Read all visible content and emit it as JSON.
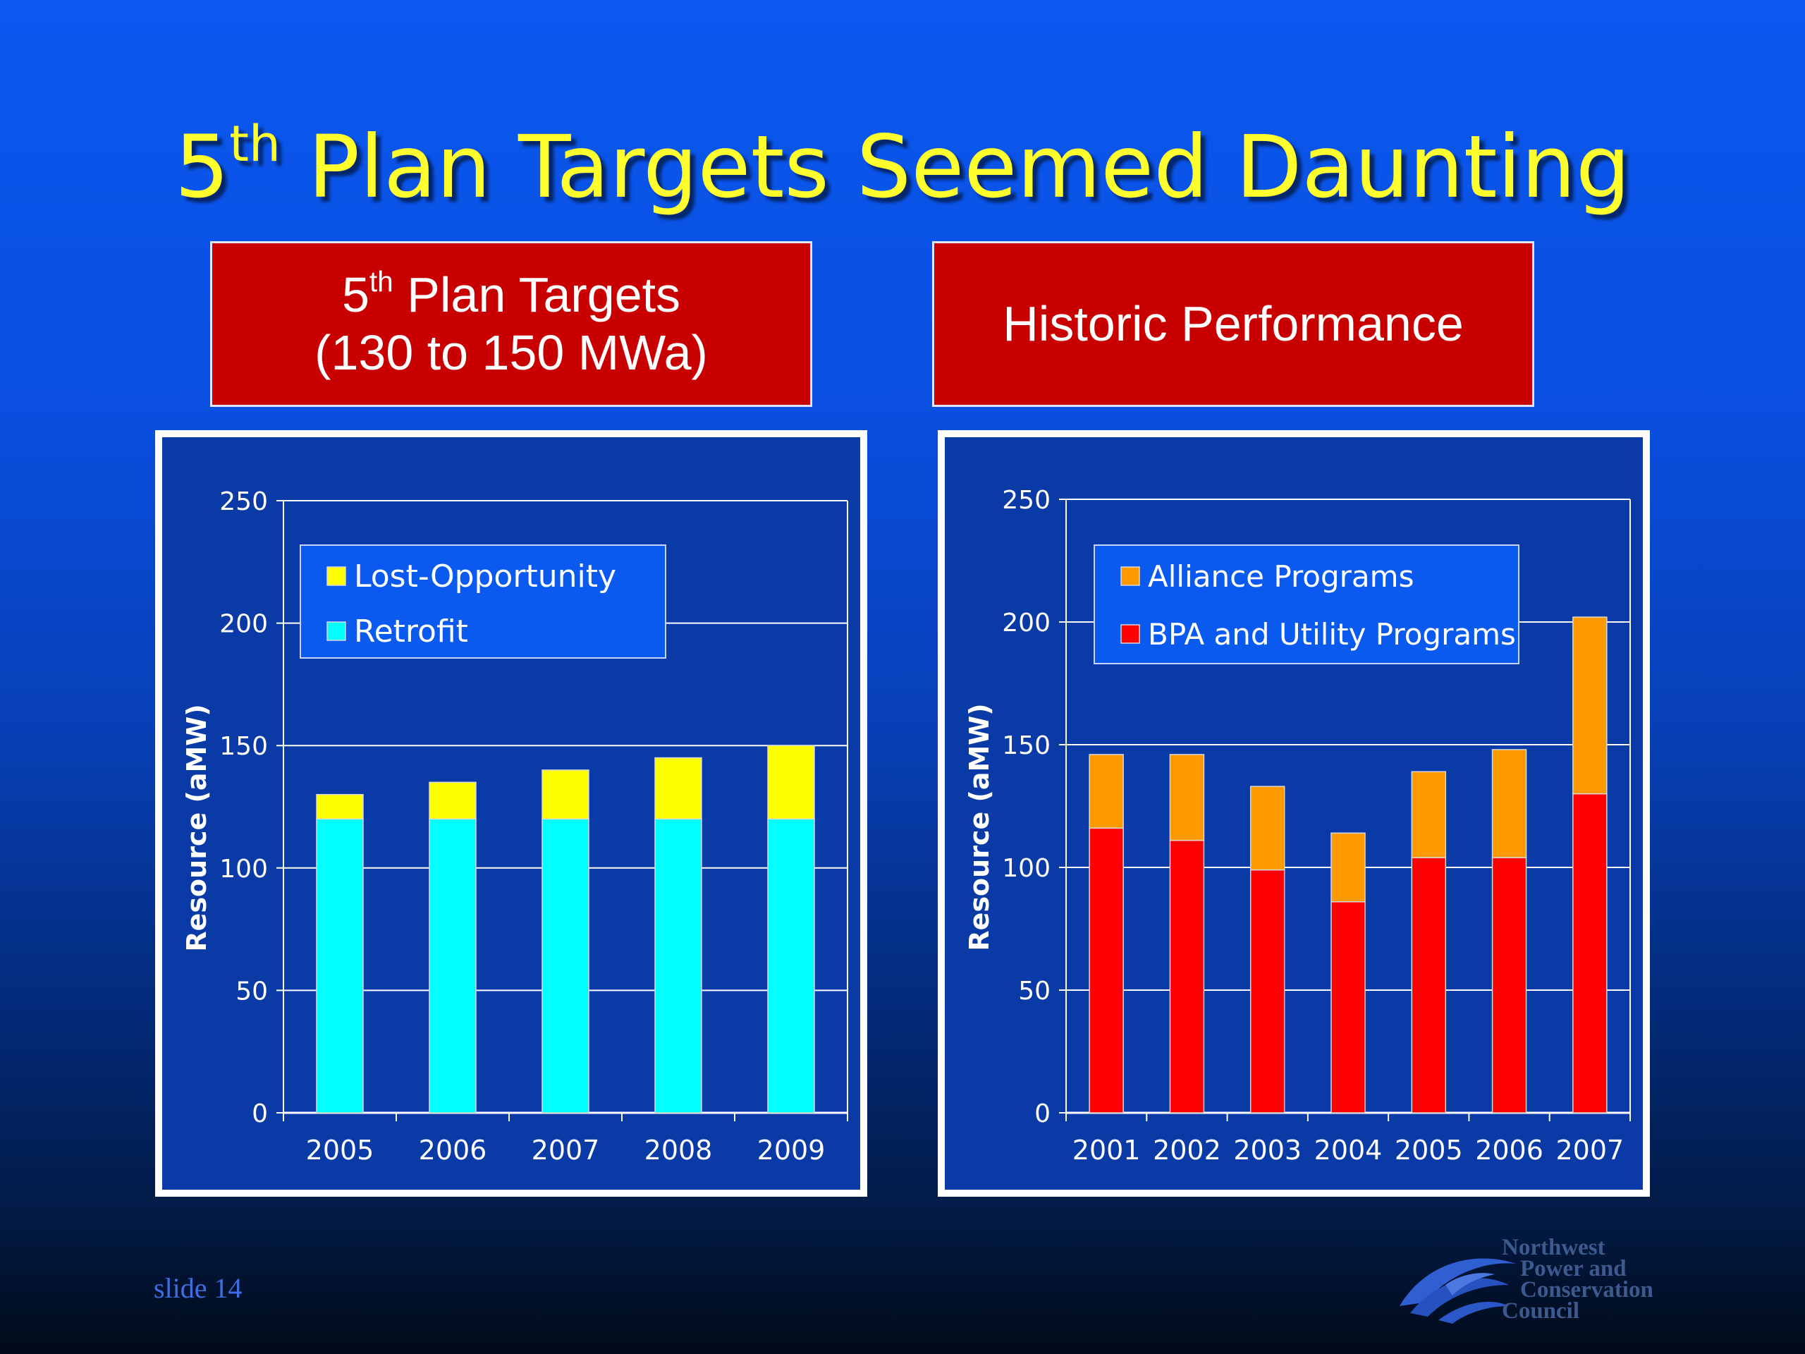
{
  "slide": {
    "title_prefix": "5",
    "title_sup": "th",
    "title_rest": " Plan Targets Seemed Daunting",
    "footer": "slide 14",
    "logo_lines": [
      "Northwest",
      "Power and",
      "Conservation",
      "Council"
    ]
  },
  "headers": {
    "left": {
      "line1_prefix": "5",
      "line1_sup": "th",
      "line1_rest": " Plan Targets",
      "line2": "(130 to 150 MWa)"
    },
    "right": {
      "line1": "Historic Performance"
    }
  },
  "colors": {
    "title": "#ffff2e",
    "header_bg": "#c90000",
    "retrofit": "#00ffff",
    "lost_opportunity": "#ffff00",
    "bpa_utility": "#ff0000",
    "alliance": "#ff9900",
    "plot_bg": "#0a3aa6"
  },
  "chart_data": [
    {
      "type": "bar",
      "stacked": true,
      "categories": [
        "2005",
        "2006",
        "2007",
        "2008",
        "2009"
      ],
      "series": [
        {
          "name": "Retrofit",
          "values": [
            120,
            120,
            120,
            120,
            120
          ],
          "color": "#00ffff"
        },
        {
          "name": "Lost-Opportunity",
          "values": [
            10,
            15,
            20,
            25,
            30
          ],
          "color": "#ffff00"
        }
      ],
      "ylabel": "Resource (aMW)",
      "ylim": [
        0,
        250
      ],
      "yticks": [
        0,
        50,
        100,
        150,
        200,
        250
      ],
      "legend_order": [
        "Lost-Opportunity",
        "Retrofit"
      ],
      "legend": "top-left",
      "grid": true
    },
    {
      "type": "bar",
      "stacked": true,
      "categories": [
        "2001",
        "2002",
        "2003",
        "2004",
        "2005",
        "2006",
        "2007"
      ],
      "series": [
        {
          "name": "BPA and Utility Programs",
          "values": [
            116,
            111,
            99,
            86,
            104,
            104,
            130
          ],
          "color": "#ff0000"
        },
        {
          "name": "Alliance Programs",
          "values": [
            30,
            35,
            34,
            28,
            35,
            44,
            72
          ],
          "color": "#ff9900"
        }
      ],
      "ylabel": "Resource (aMW)",
      "ylim": [
        0,
        250
      ],
      "yticks": [
        0,
        50,
        100,
        150,
        200,
        250
      ],
      "legend_order": [
        "Alliance Programs",
        "BPA and Utility Programs"
      ],
      "legend": "top-left",
      "grid": true
    }
  ]
}
